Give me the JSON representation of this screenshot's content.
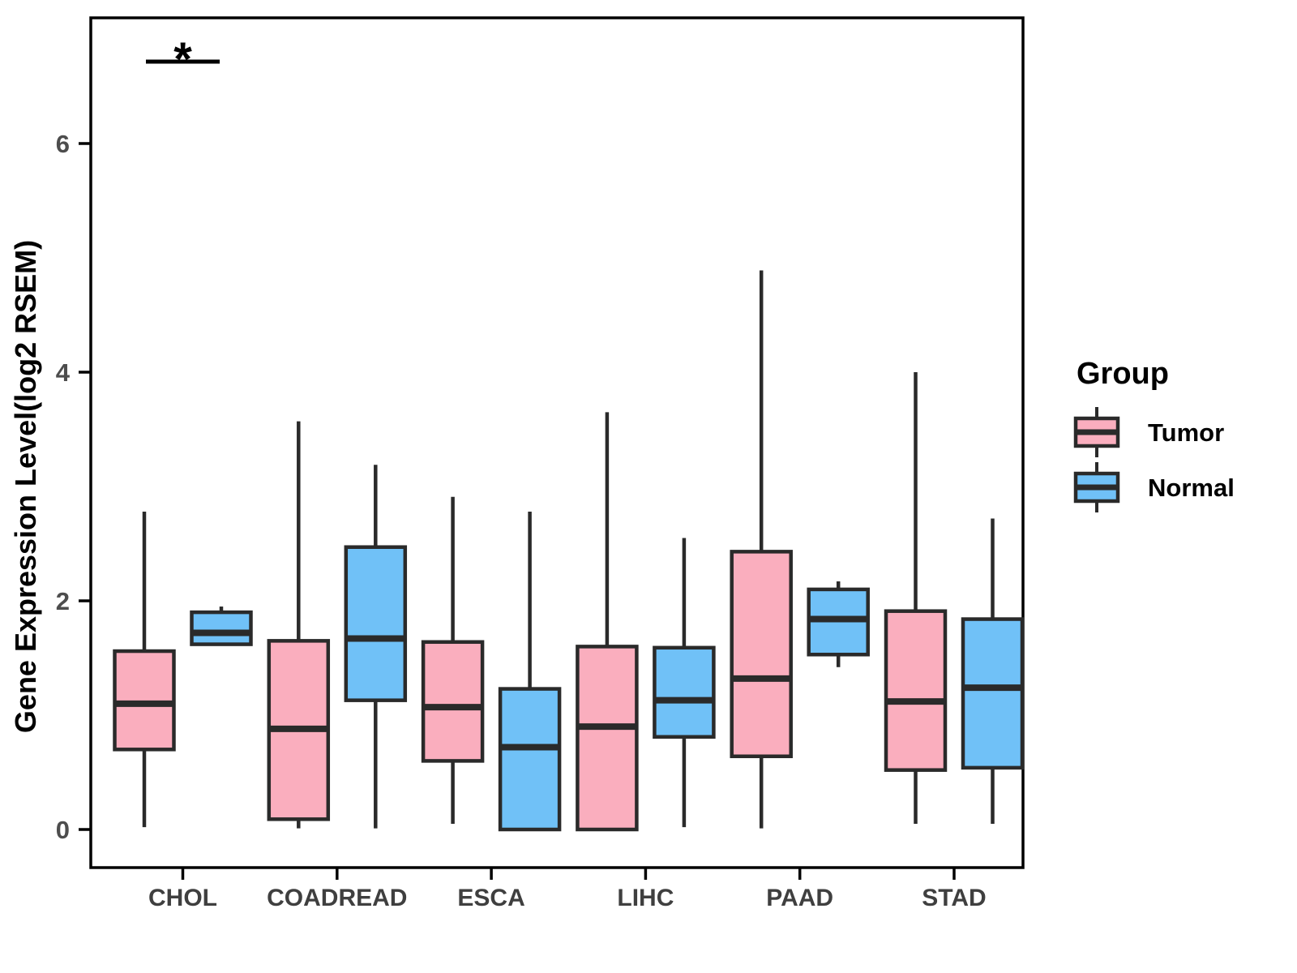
{
  "chart_data": {
    "type": "boxplot",
    "title": "",
    "xlabel": "",
    "ylabel": "Gene Expression Level(log2 RSEM)",
    "categories": [
      "CHOL",
      "COADREAD",
      "ESCA",
      "LIHC",
      "PAAD",
      "STAD"
    ],
    "ylim": [
      -0.35,
      7.1
    ],
    "yticks": [
      0,
      2,
      4,
      6
    ],
    "grid": false,
    "legend": {
      "title": "Group",
      "position": "right",
      "entries": [
        {
          "label": "Tumor",
          "color": "#FAAEBE"
        },
        {
          "label": "Normal",
          "color": "#70C1F7"
        }
      ]
    },
    "series": [
      {
        "name": "Tumor",
        "color": "#FAAEBE",
        "boxes": [
          {
            "category": "CHOL",
            "whisker_low": 0.02,
            "q1": 0.7,
            "median": 1.1,
            "q3": 1.56,
            "whisker_high": 2.78
          },
          {
            "category": "COADREAD",
            "whisker_low": 0.01,
            "q1": 0.09,
            "median": 0.88,
            "q3": 1.65,
            "whisker_high": 3.57
          },
          {
            "category": "ESCA",
            "whisker_low": 0.05,
            "q1": 0.6,
            "median": 1.07,
            "q3": 1.64,
            "whisker_high": 2.91
          },
          {
            "category": "LIHC",
            "whisker_low": 0.0,
            "q1": 0.0,
            "median": 0.9,
            "q3": 1.6,
            "whisker_high": 3.65
          },
          {
            "category": "PAAD",
            "whisker_low": 0.01,
            "q1": 0.64,
            "median": 1.32,
            "q3": 2.43,
            "whisker_high": 4.89
          },
          {
            "category": "STAD",
            "whisker_low": 0.05,
            "q1": 0.52,
            "median": 1.12,
            "q3": 1.91,
            "whisker_high": 4.0
          }
        ]
      },
      {
        "name": "Normal",
        "color": "#70C1F7",
        "boxes": [
          {
            "category": "CHOL",
            "whisker_low": 1.62,
            "q1": 1.62,
            "median": 1.72,
            "q3": 1.9,
            "whisker_high": 1.95
          },
          {
            "category": "COADREAD",
            "whisker_low": 0.01,
            "q1": 1.13,
            "median": 1.67,
            "q3": 2.47,
            "whisker_high": 3.19
          },
          {
            "category": "ESCA",
            "whisker_low": 0.0,
            "q1": 0.0,
            "median": 0.72,
            "q3": 1.23,
            "whisker_high": 2.78
          },
          {
            "category": "LIHC",
            "whisker_low": 0.02,
            "q1": 0.81,
            "median": 1.13,
            "q3": 1.59,
            "whisker_high": 2.55
          },
          {
            "category": "PAAD",
            "whisker_low": 1.42,
            "q1": 1.53,
            "median": 1.84,
            "q3": 2.1,
            "whisker_high": 2.17
          },
          {
            "category": "STAD",
            "whisker_low": 0.05,
            "q1": 0.54,
            "median": 1.24,
            "q3": 1.84,
            "whisker_high": 2.72
          }
        ]
      }
    ],
    "annotations": [
      {
        "type": "significance-bar",
        "category": "CHOL",
        "label": "*"
      }
    ],
    "colors": {
      "box_border": "#2A2A2A",
      "axis": "#000000",
      "tick_label": "#4D4D4D",
      "category_label": "#3F3F3F",
      "panel_background": "#FFFFFF"
    }
  }
}
